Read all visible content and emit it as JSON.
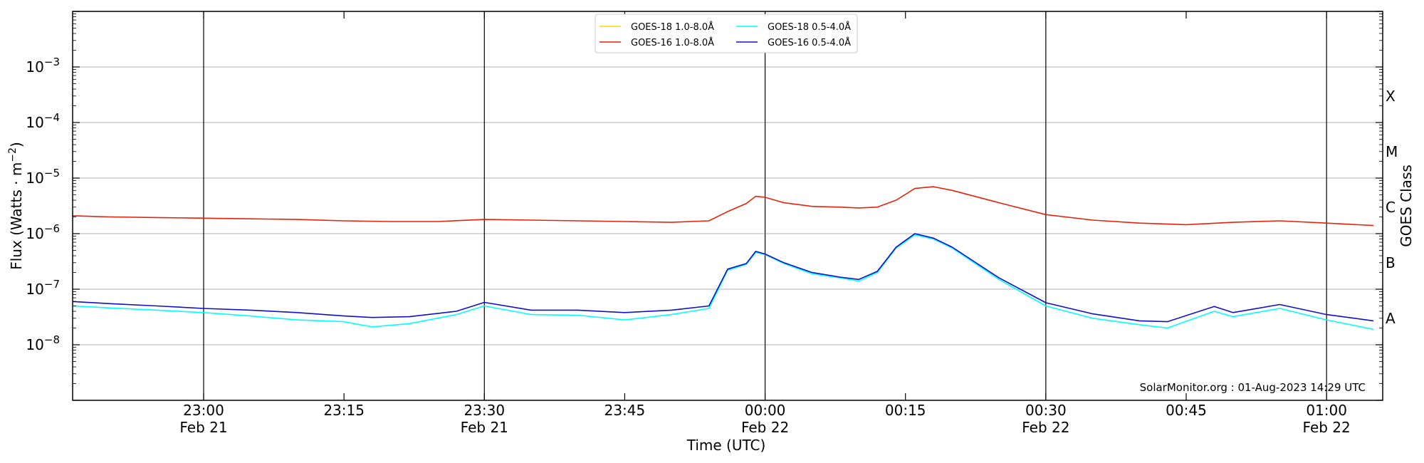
{
  "chart_data": {
    "type": "line",
    "xlabel": "Time (UTC)",
    "ylabel": "Flux (Watts · m⁻²)",
    "y2label": "GOES Class",
    "yscale": "log",
    "ylim": [
      1e-09,
      0.01
    ],
    "xlim": [
      "2023-02-21 22:46",
      "2023-02-22 01:06"
    ],
    "x_ticks": [
      {
        "x": "2023-02-21 23:00",
        "time": "23:00",
        "date": "Feb 21"
      },
      {
        "x": "2023-02-21 23:15",
        "time": "23:15",
        "date": ""
      },
      {
        "x": "2023-02-21 23:30",
        "time": "23:30",
        "date": "Feb 21"
      },
      {
        "x": "2023-02-21 23:45",
        "time": "23:45",
        "date": ""
      },
      {
        "x": "2023-02-22 00:00",
        "time": "00:00",
        "date": "Feb 22"
      },
      {
        "x": "2023-02-22 00:15",
        "time": "00:15",
        "date": ""
      },
      {
        "x": "2023-02-22 00:30",
        "time": "00:30",
        "date": "Feb 22"
      },
      {
        "x": "2023-02-22 00:45",
        "time": "00:45",
        "date": ""
      },
      {
        "x": "2023-02-22 01:00",
        "time": "01:00",
        "date": "Feb 22"
      }
    ],
    "y_ticks": [
      {
        "value": 1e-08,
        "base": "10",
        "exp": "−8"
      },
      {
        "value": 1e-07,
        "base": "10",
        "exp": "−7"
      },
      {
        "value": 1e-06,
        "base": "10",
        "exp": "−6"
      },
      {
        "value": 1e-05,
        "base": "10",
        "exp": "−5"
      },
      {
        "value": 0.0001,
        "base": "10",
        "exp": "−4"
      },
      {
        "value": 0.001,
        "base": "10",
        "exp": "−3"
      }
    ],
    "gridlines": [
      1e-08,
      1e-07,
      1e-06,
      1e-05,
      0.0001,
      0.001
    ],
    "vertical_lines": [
      "2023-02-21 23:00",
      "2023-02-21 23:30",
      "2023-02-22 00:00",
      "2023-02-22 00:30",
      "2023-02-22 01:00"
    ],
    "goes_classes": [
      {
        "label": "A",
        "value": 3e-08
      },
      {
        "label": "B",
        "value": 3e-07
      },
      {
        "label": "C",
        "value": 3e-06
      },
      {
        "label": "M",
        "value": 3e-05
      },
      {
        "label": "X",
        "value": 0.0003
      }
    ],
    "legend_position": "top-center",
    "legend": [
      {
        "name": "GOES-18 1.0-8.0Å",
        "color": "#FFD700"
      },
      {
        "name": "GOES-16 1.0-8.0Å",
        "color": "#E8220A"
      },
      {
        "name": "GOES-18 0.5-4.0Å",
        "color": "#00FFFF"
      },
      {
        "name": "GOES-16 0.5-4.0Å",
        "color": "#1010CC"
      }
    ],
    "series": [
      {
        "name": "GOES-16 1.0-8.0Å",
        "color": "#E8220A",
        "x": [
          "2023-02-21 22:46",
          "2023-02-21 22:50",
          "2023-02-21 22:55",
          "2023-02-21 23:00",
          "2023-02-21 23:05",
          "2023-02-21 23:10",
          "2023-02-21 23:15",
          "2023-02-21 23:20",
          "2023-02-21 23:25",
          "2023-02-21 23:30",
          "2023-02-21 23:35",
          "2023-02-21 23:40",
          "2023-02-21 23:45",
          "2023-02-21 23:50",
          "2023-02-21 23:54",
          "2023-02-21 23:56",
          "2023-02-21 23:58",
          "2023-02-21 23:59",
          "2023-02-22 00:00",
          "2023-02-22 00:02",
          "2023-02-22 00:05",
          "2023-02-22 00:08",
          "2023-02-22 00:10",
          "2023-02-22 00:12",
          "2023-02-22 00:14",
          "2023-02-22 00:16",
          "2023-02-22 00:18",
          "2023-02-22 00:20",
          "2023-02-22 00:25",
          "2023-02-22 00:30",
          "2023-02-22 00:35",
          "2023-02-22 00:40",
          "2023-02-22 00:45",
          "2023-02-22 00:50",
          "2023-02-22 00:55",
          "2023-02-22 01:00",
          "2023-02-22 01:05"
        ],
        "y": [
          2.1e-06,
          2e-06,
          1.95e-06,
          1.9e-06,
          1.85e-06,
          1.8e-06,
          1.7e-06,
          1.65e-06,
          1.65e-06,
          1.8e-06,
          1.75e-06,
          1.7e-06,
          1.65e-06,
          1.6e-06,
          1.7e-06,
          2.5e-06,
          3.5e-06,
          4.7e-06,
          4.5e-06,
          3.6e-06,
          3.1e-06,
          3e-06,
          2.9e-06,
          3e-06,
          4e-06,
          6.5e-06,
          7e-06,
          6e-06,
          3.6e-06,
          2.2e-06,
          1.75e-06,
          1.55e-06,
          1.45e-06,
          1.6e-06,
          1.7e-06,
          1.55e-06,
          1.4e-06
        ]
      },
      {
        "name": "GOES-18 0.5-4.0Å",
        "color": "#00FFFF",
        "x": [
          "2023-02-21 22:46",
          "2023-02-21 22:50",
          "2023-02-21 22:55",
          "2023-02-21 23:00",
          "2023-02-21 23:05",
          "2023-02-21 23:10",
          "2023-02-21 23:15",
          "2023-02-21 23:18",
          "2023-02-21 23:22",
          "2023-02-21 23:27",
          "2023-02-21 23:30",
          "2023-02-21 23:35",
          "2023-02-21 23:40",
          "2023-02-21 23:45",
          "2023-02-21 23:50",
          "2023-02-21 23:54",
          "2023-02-21 23:56",
          "2023-02-21 23:58",
          "2023-02-21 23:59",
          "2023-02-22 00:00",
          "2023-02-22 00:02",
          "2023-02-22 00:05",
          "2023-02-22 00:08",
          "2023-02-22 00:10",
          "2023-02-22 00:12",
          "2023-02-22 00:14",
          "2023-02-22 00:16",
          "2023-02-22 00:18",
          "2023-02-22 00:20",
          "2023-02-22 00:25",
          "2023-02-22 00:30",
          "2023-02-22 00:35",
          "2023-02-22 00:40",
          "2023-02-22 00:43",
          "2023-02-22 00:48",
          "2023-02-22 00:50",
          "2023-02-22 00:55",
          "2023-02-22 01:00",
          "2023-02-22 01:05"
        ],
        "y": [
          5e-08,
          4.6e-08,
          4.2e-08,
          3.8e-08,
          3.3e-08,
          2.8e-08,
          2.6e-08,
          2.1e-08,
          2.4e-08,
          3.5e-08,
          5e-08,
          3.5e-08,
          3.4e-08,
          2.8e-08,
          3.5e-08,
          4.5e-08,
          2.2e-07,
          2.8e-07,
          4.6e-07,
          4.2e-07,
          2.9e-07,
          1.9e-07,
          1.6e-07,
          1.4e-07,
          2e-07,
          5.5e-07,
          9.5e-07,
          8e-07,
          5.5e-07,
          1.5e-07,
          5e-08,
          3e-08,
          2.3e-08,
          2e-08,
          4e-08,
          3.2e-08,
          4.5e-08,
          2.8e-08,
          1.9e-08
        ]
      },
      {
        "name": "GOES-16 0.5-4.0Å",
        "color": "#1010CC",
        "x": [
          "2023-02-21 22:46",
          "2023-02-21 22:50",
          "2023-02-21 22:55",
          "2023-02-21 23:00",
          "2023-02-21 23:05",
          "2023-02-21 23:10",
          "2023-02-21 23:15",
          "2023-02-21 23:18",
          "2023-02-21 23:22",
          "2023-02-21 23:27",
          "2023-02-21 23:30",
          "2023-02-21 23:35",
          "2023-02-21 23:40",
          "2023-02-21 23:45",
          "2023-02-21 23:50",
          "2023-02-21 23:54",
          "2023-02-21 23:56",
          "2023-02-21 23:58",
          "2023-02-21 23:59",
          "2023-02-22 00:00",
          "2023-02-22 00:02",
          "2023-02-22 00:05",
          "2023-02-22 00:08",
          "2023-02-22 00:10",
          "2023-02-22 00:12",
          "2023-02-22 00:14",
          "2023-02-22 00:16",
          "2023-02-22 00:18",
          "2023-02-22 00:20",
          "2023-02-22 00:25",
          "2023-02-22 00:30",
          "2023-02-22 00:35",
          "2023-02-22 00:40",
          "2023-02-22 00:43",
          "2023-02-22 00:48",
          "2023-02-22 00:50",
          "2023-02-22 00:55",
          "2023-02-22 01:00",
          "2023-02-22 01:05"
        ],
        "y": [
          6e-08,
          5.5e-08,
          5e-08,
          4.5e-08,
          4.2e-08,
          3.8e-08,
          3.3e-08,
          3.1e-08,
          3.2e-08,
          4e-08,
          5.8e-08,
          4.2e-08,
          4.2e-08,
          3.8e-08,
          4.2e-08,
          5e-08,
          2.3e-07,
          2.9e-07,
          4.8e-07,
          4.3e-07,
          3e-07,
          2e-07,
          1.65e-07,
          1.5e-07,
          2.1e-07,
          5.7e-07,
          1e-06,
          8.3e-07,
          5.7e-07,
          1.6e-07,
          5.7e-08,
          3.6e-08,
          2.7e-08,
          2.6e-08,
          4.9e-08,
          3.8e-08,
          5.3e-08,
          3.5e-08,
          2.7e-08
        ]
      }
    ],
    "credit": "SolarMonitor.org : 01-Aug-2023 14:29 UTC"
  }
}
